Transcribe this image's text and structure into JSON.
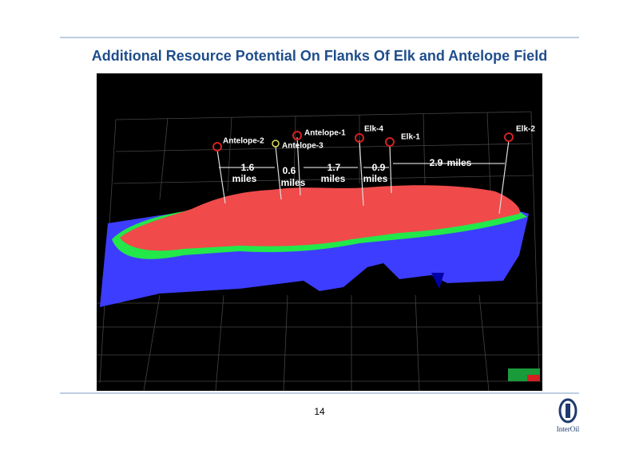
{
  "header": {
    "title": "Additional Resource Potential On Flanks Of Elk and Antelope Field"
  },
  "image": {
    "wells": [
      {
        "label": "Antelope-2"
      },
      {
        "label": "Antelope-3"
      },
      {
        "label": "Antelope-1"
      },
      {
        "label": "Elk-4"
      },
      {
        "label": "Elk-1"
      },
      {
        "label": "Elk-2"
      }
    ],
    "distances": [
      {
        "value": "1.6",
        "unit": "miles"
      },
      {
        "value": "0.6",
        "unit": "miles"
      },
      {
        "value": "1.7",
        "unit": "miles"
      },
      {
        "value": "0.9",
        "unit": "miles"
      },
      {
        "value": "2.9",
        "unit": "miles"
      }
    ]
  },
  "footer": {
    "page_number": "14",
    "logo": "InterOil"
  }
}
